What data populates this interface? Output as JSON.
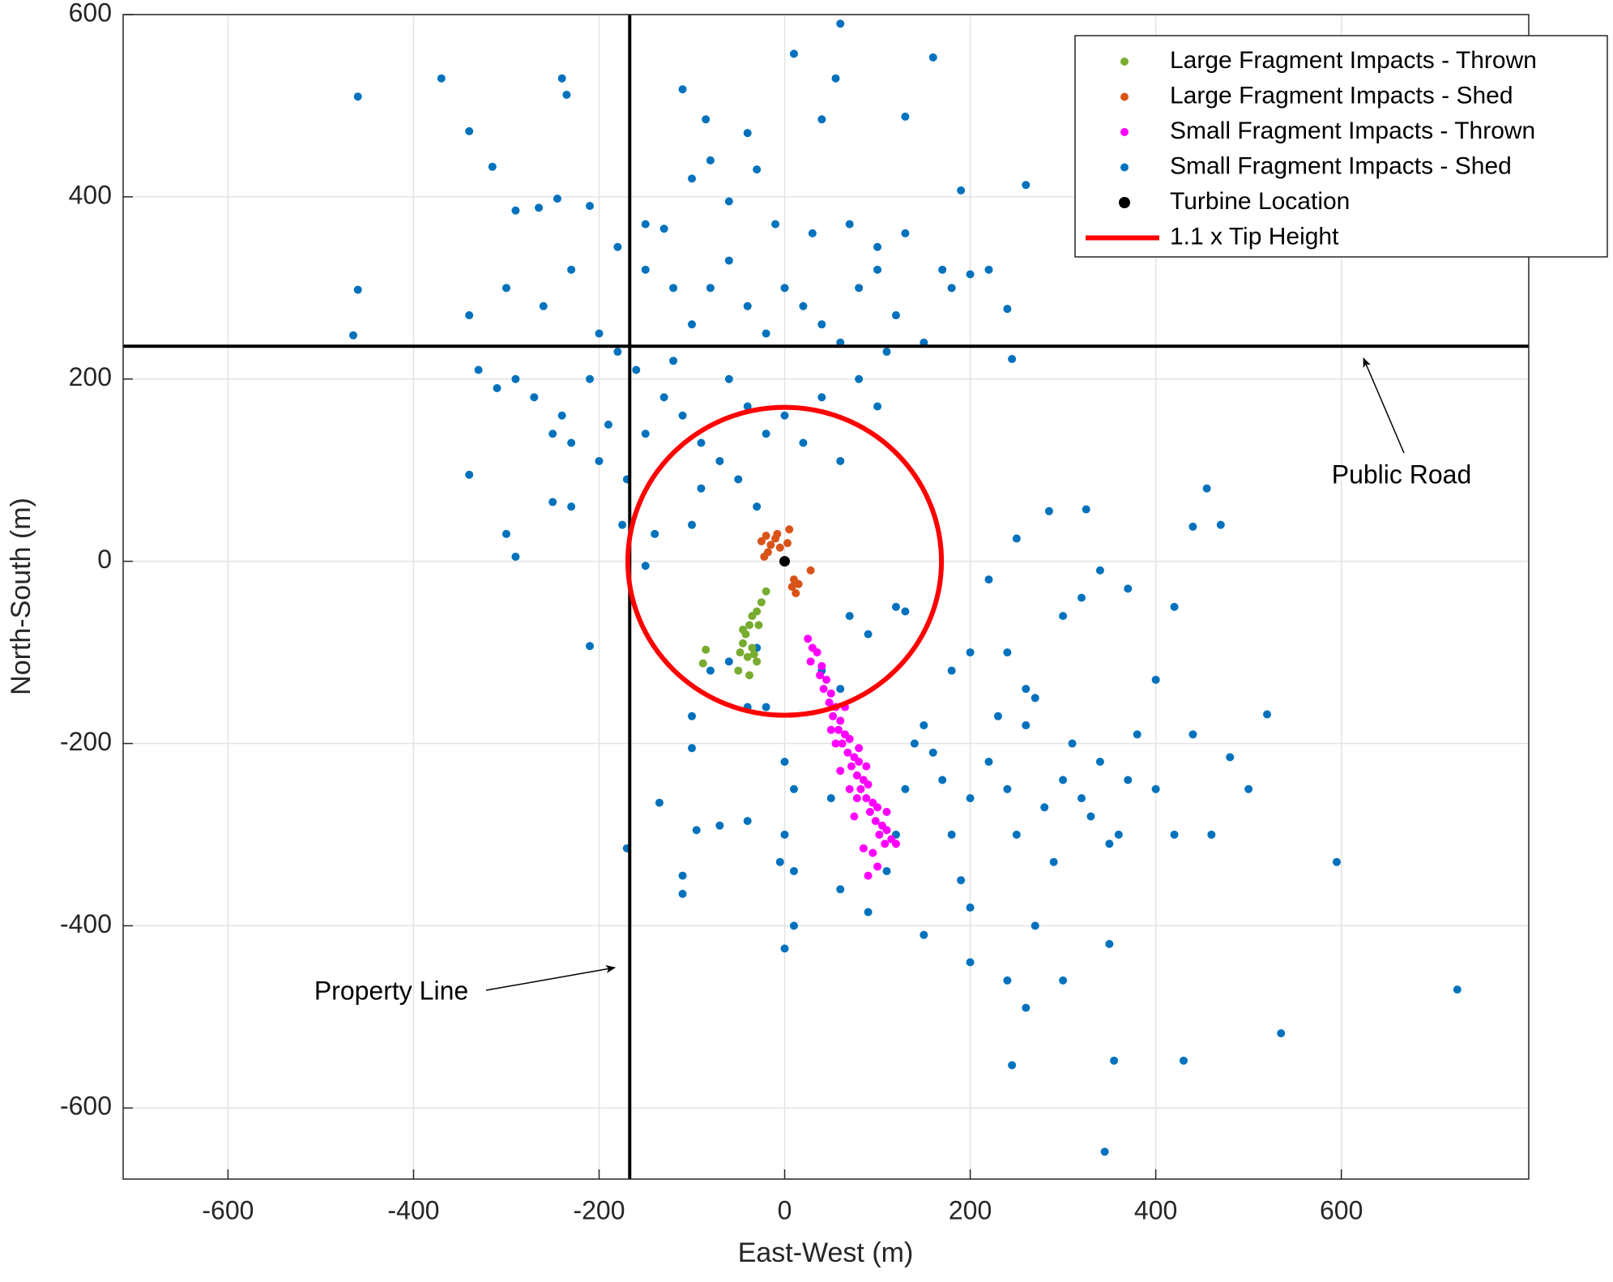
{
  "chart_data": {
    "type": "scatter",
    "xlabel": "East-West (m)",
    "ylabel": "North-South (m)",
    "xlim": [
      -713,
      802
    ],
    "ylim": [
      -678,
      600
    ],
    "xticks": [
      -600,
      -400,
      -200,
      0,
      200,
      400,
      600
    ],
    "yticks": [
      -600,
      -400,
      -200,
      0,
      200,
      400,
      600
    ],
    "grid": true,
    "legend_location": "northeast",
    "series": [
      {
        "name": "Large Fragment Impacts - Thrown",
        "color": "#77ac30",
        "x": [
          -20,
          -25,
          -30,
          -35,
          -38,
          -42,
          -45,
          -48,
          -40,
          -35,
          -30,
          -50,
          -38,
          -85,
          -88,
          -45,
          -28,
          -33
        ],
        "values": [
          -33,
          -45,
          -55,
          -60,
          -70,
          -80,
          -90,
          -100,
          -105,
          -95,
          -110,
          -120,
          -125,
          -97,
          -112,
          -75,
          -70,
          -102
        ]
      },
      {
        "name": "Large Fragment Impacts - Shed",
        "color": "#d95319",
        "x": [
          -25,
          -20,
          -15,
          -10,
          -5,
          5,
          3,
          -18,
          -22,
          10,
          12,
          15,
          28,
          8,
          -8
        ],
        "values": [
          22,
          28,
          18,
          25,
          15,
          35,
          20,
          10,
          5,
          -20,
          -35,
          -25,
          -10,
          -28,
          30
        ]
      },
      {
        "name": "Small Fragment Impacts - Thrown",
        "color": "#ff00ff",
        "x": [
          25,
          30,
          35,
          28,
          40,
          38,
          45,
          42,
          50,
          48,
          55,
          52,
          60,
          58,
          65,
          62,
          70,
          68,
          75,
          72,
          80,
          78,
          85,
          82,
          90,
          88,
          95,
          92,
          100,
          98,
          105,
          102,
          110,
          108,
          115,
          95,
          85,
          100,
          90,
          75,
          70,
          60,
          55,
          65,
          80,
          110,
          120,
          50,
          88,
          78
        ],
        "values": [
          -85,
          -95,
          -100,
          -110,
          -115,
          -125,
          -130,
          -140,
          -145,
          -155,
          -160,
          -170,
          -175,
          -185,
          -190,
          -200,
          -195,
          -210,
          -215,
          -225,
          -220,
          -235,
          -240,
          -250,
          -245,
          -260,
          -265,
          -275,
          -270,
          -285,
          -290,
          -300,
          -295,
          -310,
          -305,
          -320,
          -315,
          -335,
          -345,
          -280,
          -250,
          -230,
          -200,
          -160,
          -205,
          -275,
          -310,
          -185,
          -225,
          -260
        ]
      },
      {
        "name": "Small Fragment Impacts - Shed",
        "color": "#0072bd",
        "x": [
          -460,
          -370,
          -240,
          -235,
          -340,
          -315,
          -460,
          -465,
          60,
          10,
          160,
          55,
          -110,
          40,
          130,
          -85,
          -40,
          260,
          190,
          240,
          245,
          -210,
          595,
          725,
          535,
          430,
          355,
          345,
          245,
          -170,
          520,
          455,
          470,
          440,
          285,
          325,
          -290,
          -265,
          -245,
          -210,
          -180,
          -230,
          -260,
          -300,
          -340,
          -290,
          -270,
          -250,
          -230,
          -200,
          -170,
          -150,
          -130,
          -120,
          -100,
          -80,
          -60,
          -40,
          -20,
          0,
          20,
          40,
          60,
          80,
          100,
          120,
          -60,
          -40,
          -20,
          0,
          20,
          40,
          60,
          80,
          100,
          110,
          -150,
          -130,
          -100,
          -80,
          -60,
          -30,
          -10,
          30,
          70,
          100,
          130,
          -340,
          -300,
          -290,
          -250,
          -230,
          -200,
          -180,
          -160,
          -210,
          -240,
          -330,
          -310,
          -190,
          -110,
          -90,
          -70,
          -50,
          -30,
          -140,
          -100,
          -150,
          -175,
          -120,
          -150,
          150,
          170,
          200,
          220,
          180,
          -90,
          -100,
          -100,
          -80,
          -40,
          -20,
          -70,
          -40,
          0,
          10,
          0,
          -5,
          10,
          0,
          10,
          50,
          60,
          90,
          110,
          120,
          130,
          140,
          150,
          160,
          170,
          180,
          190,
          200,
          220,
          240,
          250,
          260,
          270,
          280,
          290,
          300,
          310,
          320,
          330,
          340,
          350,
          360,
          370,
          380,
          400,
          420,
          440,
          460,
          480,
          500,
          240,
          260,
          200,
          180,
          300,
          320,
          340,
          370,
          400,
          420,
          250,
          220,
          130,
          120,
          90,
          70,
          40,
          60,
          -60,
          -30,
          200,
          230,
          270,
          240,
          300,
          350,
          260,
          200,
          -135,
          -110,
          -110,
          -95,
          150
        ],
        "values": [
          510,
          530,
          530,
          512,
          472,
          433,
          298,
          248,
          590,
          557,
          553,
          530,
          518,
          485,
          488,
          485,
          470,
          413,
          407,
          277,
          222,
          -93,
          -330,
          -470,
          -518,
          -548,
          -548,
          -648,
          -553,
          -315,
          -168,
          80,
          40,
          38,
          55,
          57,
          385,
          388,
          398,
          390,
          345,
          320,
          280,
          300,
          270,
          200,
          180,
          140,
          130,
          110,
          90,
          140,
          180,
          220,
          260,
          300,
          330,
          280,
          250,
          300,
          280,
          260,
          240,
          300,
          320,
          270,
          200,
          170,
          140,
          160,
          130,
          180,
          110,
          200,
          170,
          230,
          370,
          365,
          420,
          440,
          395,
          430,
          370,
          360,
          370,
          345,
          360,
          95,
          30,
          5,
          65,
          60,
          250,
          230,
          210,
          200,
          160,
          210,
          190,
          150,
          160,
          130,
          110,
          90,
          60,
          30,
          40,
          -5,
          40,
          300,
          320,
          240,
          320,
          315,
          320,
          300,
          80,
          -170,
          -205,
          -120,
          -160,
          -160,
          -290,
          -285,
          -220,
          -250,
          -300,
          -330,
          -340,
          -425,
          -400,
          -260,
          -360,
          -385,
          -340,
          -300,
          -250,
          -200,
          -180,
          -210,
          -240,
          -300,
          -350,
          -380,
          -220,
          -250,
          -300,
          -180,
          -150,
          -270,
          -330,
          -240,
          -200,
          -260,
          -280,
          -220,
          -310,
          -300,
          -240,
          -190,
          -250,
          -300,
          -190,
          -300,
          -215,
          -250,
          -100,
          -140,
          -100,
          -120,
          -60,
          -40,
          -10,
          -30,
          -130,
          -50,
          25,
          -20,
          -55,
          -50,
          -80,
          -60,
          -120,
          -140,
          -110,
          -95,
          -260,
          -170,
          -400,
          -460,
          -460,
          -420,
          -490,
          -440,
          -265,
          -345,
          -365,
          -295,
          -410
        ]
      },
      {
        "name": "Turbine Location",
        "color": "#000000",
        "x": [
          0
        ],
        "values": [
          0
        ]
      }
    ],
    "circle": {
      "name": "1.1 x Tip Height",
      "color": "#ff0000",
      "radius": 169
    },
    "reference_lines": [
      {
        "axis": "x",
        "value": -167,
        "color": "#000000"
      },
      {
        "axis": "y",
        "value": 236,
        "color": "#000000"
      }
    ],
    "annotations": [
      "Public Road",
      "Property Line"
    ]
  }
}
